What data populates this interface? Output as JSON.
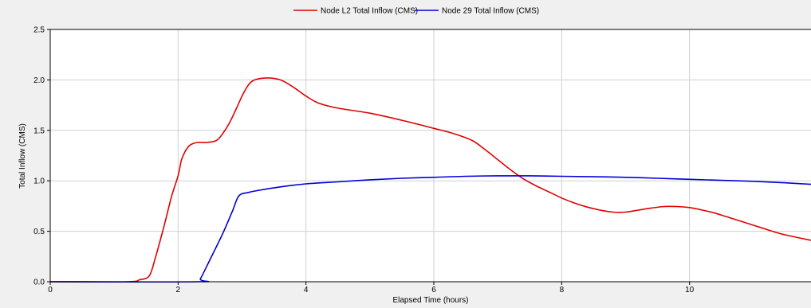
{
  "chart_data": {
    "type": "line",
    "title": "",
    "xlabel": "Elapsed Time (hours)",
    "ylabel": "Total Inflow (CMS)",
    "xlim": [
      0,
      11.9
    ],
    "ylim": [
      0,
      2.5
    ],
    "x_ticks": [
      0,
      2,
      4,
      6,
      8,
      10
    ],
    "x_tick_labels": [
      "0",
      "2",
      "4",
      "6",
      "8",
      "10"
    ],
    "y_ticks": [
      0,
      0.5,
      1.0,
      1.5,
      2.0,
      2.5
    ],
    "y_tick_labels": [
      "0.0",
      "0.5",
      "1.0",
      "1.5",
      "2.0",
      "2.5"
    ],
    "grid": true,
    "legend_position": "top-center",
    "series": [
      {
        "name": "Node L2 Total Inflow (CMS)",
        "color": "#e00000",
        "x": [
          0,
          1.2,
          1.4,
          1.55,
          1.65,
          1.8,
          1.9,
          2.0,
          2.05,
          2.1,
          2.15,
          2.2,
          2.3,
          2.45,
          2.6,
          2.7,
          2.8,
          2.9,
          3.0,
          3.1,
          3.2,
          3.4,
          3.6,
          3.8,
          4.0,
          4.2,
          4.5,
          5.0,
          5.5,
          6.0,
          6.3,
          6.6,
          6.8,
          7.0,
          7.2,
          7.4,
          7.6,
          7.8,
          8.0,
          8.2,
          8.4,
          8.6,
          8.8,
          9.0,
          9.2,
          9.4,
          9.6,
          9.8,
          10.0,
          10.2,
          10.4,
          10.6,
          10.8,
          11.0,
          11.2,
          11.4,
          11.6,
          11.9
        ],
        "y": [
          0.0,
          0.0,
          0.02,
          0.06,
          0.25,
          0.6,
          0.85,
          1.05,
          1.2,
          1.28,
          1.33,
          1.36,
          1.38,
          1.38,
          1.4,
          1.47,
          1.57,
          1.7,
          1.84,
          1.95,
          2.0,
          2.02,
          2.0,
          1.93,
          1.84,
          1.77,
          1.72,
          1.67,
          1.6,
          1.52,
          1.47,
          1.4,
          1.31,
          1.21,
          1.11,
          1.02,
          0.95,
          0.89,
          0.83,
          0.78,
          0.74,
          0.71,
          0.69,
          0.69,
          0.71,
          0.73,
          0.745,
          0.745,
          0.735,
          0.71,
          0.68,
          0.64,
          0.6,
          0.56,
          0.52,
          0.48,
          0.45,
          0.41
        ]
      },
      {
        "name": "Node 29 Total Inflow (CMS)",
        "color": "#0000d8",
        "x": [
          0,
          2.3,
          2.35,
          2.5,
          2.7,
          2.85,
          2.95,
          3.1,
          3.3,
          3.6,
          4.0,
          4.5,
          5.0,
          5.5,
          6.0,
          6.5,
          7.0,
          7.5,
          8.0,
          8.5,
          9.0,
          9.5,
          10.0,
          10.5,
          11.0,
          11.5,
          11.9
        ],
        "y": [
          0.0,
          0.0,
          0.03,
          0.22,
          0.48,
          0.7,
          0.85,
          0.885,
          0.91,
          0.94,
          0.97,
          0.99,
          1.01,
          1.025,
          1.035,
          1.045,
          1.05,
          1.05,
          1.045,
          1.04,
          1.035,
          1.025,
          1.015,
          1.005,
          0.995,
          0.98,
          0.965
        ]
      }
    ]
  }
}
